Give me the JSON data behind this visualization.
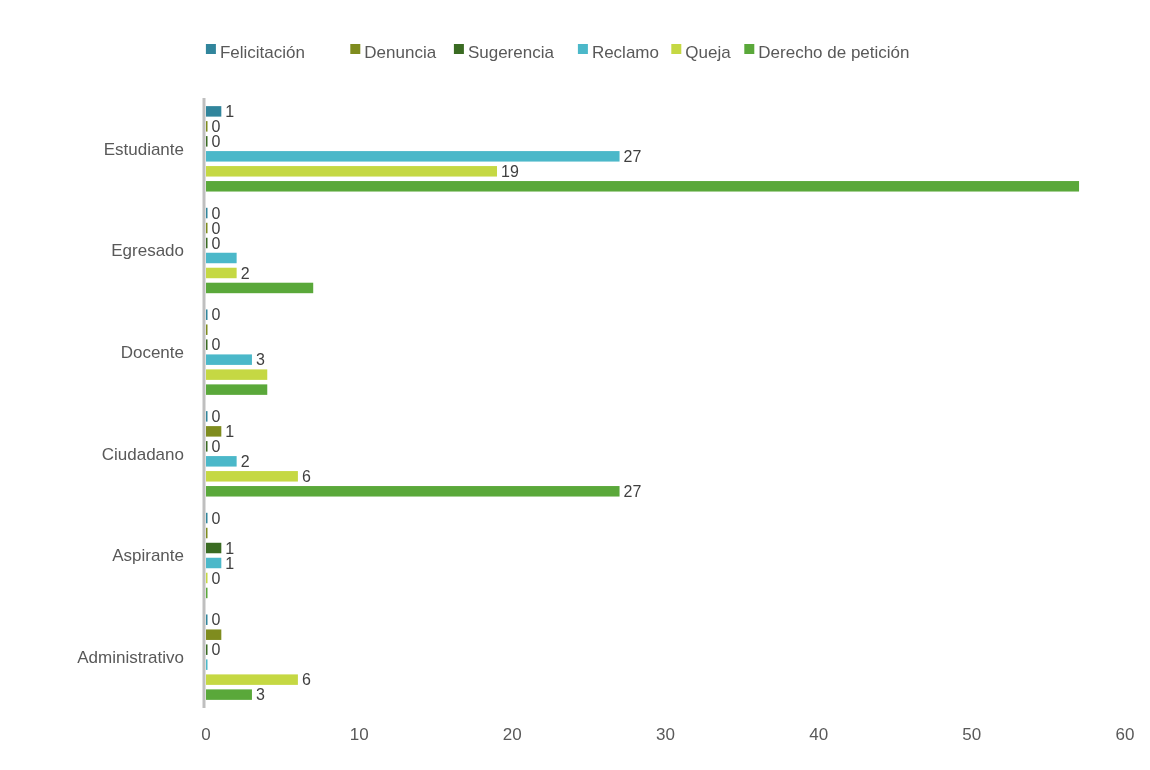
{
  "chart_data": {
    "type": "bar",
    "orientation": "horizontal",
    "categories": [
      "Estudiante",
      "Egresado",
      "Docente",
      "Ciudadano",
      "Aspirante",
      "Administrativo"
    ],
    "series": [
      {
        "name": "Felicitación",
        "color": "#31859c",
        "values": [
          1,
          0,
          0,
          0,
          0,
          0
        ],
        "value_labels": [
          "1",
          "0",
          "0",
          "0",
          "0",
          "0"
        ]
      },
      {
        "name": "Denuncia",
        "color": "#7f8c1e",
        "values": [
          0,
          0,
          0,
          1,
          0,
          1
        ],
        "value_labels": [
          "0",
          "0",
          null,
          "1",
          null,
          null
        ]
      },
      {
        "name": "Sugerencia",
        "color": "#3a6b22",
        "values": [
          0,
          0,
          0,
          0,
          1,
          0
        ],
        "value_labels": [
          "0",
          "0",
          "0",
          "0",
          "1",
          "0"
        ]
      },
      {
        "name": "Reclamo",
        "color": "#4bb8c9",
        "values": [
          27,
          2,
          3,
          2,
          1,
          0
        ],
        "value_labels": [
          "27",
          null,
          "3",
          "2",
          "1",
          null
        ]
      },
      {
        "name": "Queja",
        "color": "#c5d843",
        "values": [
          19,
          2,
          4,
          6,
          0,
          6
        ],
        "value_labels": [
          "19",
          "2",
          null,
          "6",
          "0",
          "6"
        ]
      },
      {
        "name": "Derecho de petición",
        "color": "#5aa83a",
        "values": [
          57,
          7,
          4,
          27,
          0,
          3
        ],
        "value_labels": [
          null,
          null,
          null,
          "27",
          null,
          "3"
        ]
      }
    ],
    "xlim": [
      0,
      60
    ],
    "xticks": [
      0,
      10,
      20,
      30,
      40,
      50,
      60
    ],
    "legend": "top",
    "grid": false
  }
}
